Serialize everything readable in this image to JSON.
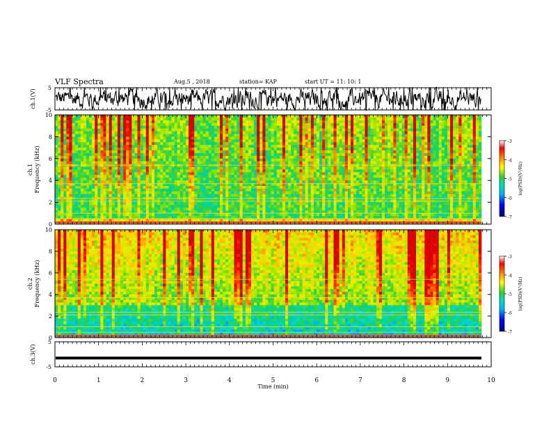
{
  "header": {
    "title": "VLF Spectra",
    "date": "Aug.5  , 2018",
    "station": "station= KAP",
    "start_ut": "start  UT =   11: 10: 1"
  },
  "chart_data": [
    {
      "type": "line",
      "title": "",
      "ylabel": "ch.1(V)",
      "ylim": [
        -5,
        5
      ],
      "yticks": [
        "5",
        "-5"
      ],
      "xlim": [
        0,
        10
      ],
      "series": [
        {
          "values_description_only": true
        }
      ],
      "color": "#000000"
    },
    {
      "type": "heatmap",
      "ylabel_top": "ch.1",
      "ylabel": "Frequency (kHz)",
      "ylim": [
        0,
        10
      ],
      "yticks": [
        "0",
        "2",
        "4",
        "6",
        "8",
        "10"
      ],
      "xlim": [
        0,
        10
      ],
      "colorbar": {
        "label": "log(PSD)(V²/Hz)",
        "range": [
          -7,
          -3
        ],
        "ticks": [
          "-3",
          "-4",
          "-5",
          "-6",
          "-7"
        ]
      }
    },
    {
      "type": "heatmap",
      "ylabel_top": "ch.2",
      "ylabel": "Frequency (kHz)",
      "ylim": [
        0,
        10
      ],
      "yticks": [
        "0",
        "2",
        "4",
        "6",
        "8",
        "10"
      ],
      "xlim": [
        0,
        10
      ],
      "colorbar": {
        "label": "log(PSD)(V²/Hz)",
        "range": [
          -7,
          -3
        ],
        "ticks": [
          "-3",
          "-4",
          "-5",
          "-6",
          "-7"
        ]
      }
    },
    {
      "type": "line",
      "ylabel": "ch.3(V)",
      "ylim": [
        -5,
        5
      ],
      "yticks": [
        "5",
        "-5"
      ],
      "xlim": [
        0,
        10
      ],
      "series": [
        {
          "constant_value": -1.5
        }
      ]
    }
  ],
  "x_axis": {
    "label": "Time  (min)",
    "ticks": [
      "0",
      "1",
      "2",
      "3",
      "4",
      "5",
      "6",
      "7",
      "8",
      "9",
      "10"
    ],
    "data_end_min": 9.8
  }
}
